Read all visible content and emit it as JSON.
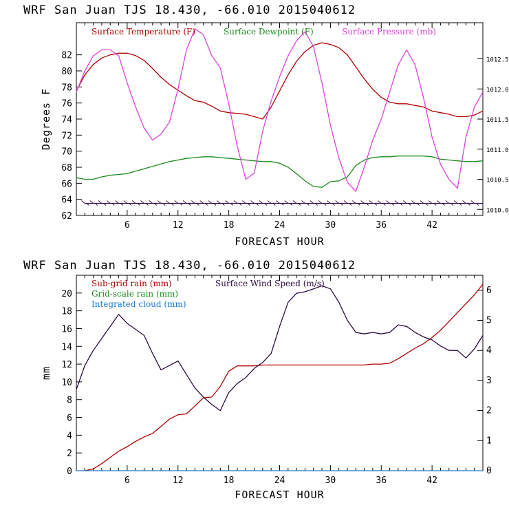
{
  "chart_data": [
    {
      "type": "line",
      "title": "WRF   San Juan TJS  18.430, -66.010  2015040612",
      "xlabel": "FORECAST HOUR",
      "ylabel": "Degrees F",
      "xlim": [
        0,
        48
      ],
      "ylim": [
        62,
        86
      ],
      "y2lim": [
        1009.9,
        1013.1
      ],
      "x_ticks": [
        6,
        12,
        18,
        24,
        30,
        36,
        42
      ],
      "y_ticks": [
        62,
        64,
        66,
        68,
        70,
        72,
        74,
        76,
        78,
        80,
        82
      ],
      "y2_ticks": [
        "1010.0",
        "1010.5",
        "1011.0",
        "1011.5",
        "1012.0",
        "1012.5"
      ],
      "y2_tick_values": [
        1010.0,
        1010.5,
        1011.0,
        1011.5,
        1012.0,
        1012.5
      ],
      "legend": [
        "Surface Temperature (F)",
        "Surface Dewpoint (F)",
        "Surface Pressure (mb)"
      ],
      "legend_position": "top",
      "colors": {
        "temp": "#b00000",
        "dew": "#1e8a1e",
        "pres": "#e040e0",
        "wind": "#3a1050"
      },
      "series": [
        {
          "name": "Surface Temperature (F)",
          "color": "#b00000",
          "axis": "left",
          "x": [
            0,
            1,
            2,
            3,
            4,
            5,
            6,
            7,
            8,
            9,
            10,
            11,
            12,
            13,
            14,
            15,
            16,
            17,
            18,
            19,
            20,
            21,
            22,
            23,
            24,
            25,
            26,
            27,
            28,
            29,
            30,
            31,
            32,
            33,
            34,
            35,
            36,
            37,
            38,
            39,
            40,
            41,
            42,
            43,
            44,
            45,
            46,
            47,
            48
          ],
          "y": [
            77.5,
            79.5,
            80.8,
            81.6,
            82.0,
            82.2,
            82.2,
            81.9,
            81.3,
            80.3,
            79.2,
            78.3,
            77.6,
            76.9,
            76.3,
            76.1,
            75.6,
            75.0,
            74.8,
            74.7,
            74.6,
            74.3,
            74.0,
            75.5,
            77.5,
            79.5,
            81.2,
            82.4,
            83.2,
            83.5,
            83.3,
            82.9,
            82.0,
            80.5,
            79.0,
            77.7,
            76.7,
            76.1,
            75.9,
            75.9,
            75.7,
            75.5,
            75.0,
            74.8,
            74.6,
            74.3,
            74.3,
            74.5,
            75.0
          ]
        },
        {
          "name": "Surface Dewpoint (F)",
          "color": "#1e8a1e",
          "axis": "left",
          "x": [
            0,
            1,
            2,
            3,
            4,
            5,
            6,
            7,
            8,
            9,
            10,
            11,
            12,
            13,
            14,
            15,
            16,
            17,
            18,
            19,
            20,
            21,
            22,
            23,
            24,
            25,
            26,
            27,
            28,
            29,
            30,
            31,
            32,
            33,
            34,
            35,
            36,
            37,
            38,
            39,
            40,
            41,
            42,
            43,
            44,
            45,
            46,
            47,
            48
          ],
          "y": [
            66.7,
            66.5,
            66.5,
            66.8,
            67.0,
            67.1,
            67.2,
            67.5,
            67.8,
            68.1,
            68.4,
            68.7,
            68.9,
            69.1,
            69.2,
            69.3,
            69.3,
            69.2,
            69.1,
            69.0,
            68.9,
            68.8,
            68.7,
            68.7,
            68.5,
            68.0,
            67.2,
            66.3,
            65.6,
            65.5,
            66.2,
            66.3,
            66.8,
            68.2,
            68.9,
            69.2,
            69.3,
            69.3,
            69.4,
            69.4,
            69.4,
            69.4,
            69.3,
            69.0,
            68.9,
            68.8,
            68.7,
            68.7,
            68.8
          ]
        },
        {
          "name": "Surface Pressure (mb)",
          "color": "#e040e0",
          "axis": "right",
          "x": [
            0,
            1,
            2,
            3,
            4,
            5,
            6,
            7,
            8,
            9,
            10,
            11,
            12,
            13,
            14,
            15,
            16,
            17,
            18,
            19,
            20,
            21,
            22,
            23,
            24,
            25,
            26,
            27,
            28,
            29,
            30,
            31,
            32,
            33,
            34,
            35,
            36,
            37,
            38,
            39,
            40,
            41,
            42,
            43,
            44,
            45,
            46,
            47,
            48
          ],
          "y": [
            1011.95,
            1012.3,
            1012.55,
            1012.65,
            1012.65,
            1012.55,
            1012.1,
            1011.7,
            1011.35,
            1011.15,
            1011.25,
            1011.45,
            1012.0,
            1012.65,
            1013.0,
            1012.9,
            1012.55,
            1012.35,
            1011.75,
            1011.05,
            1010.5,
            1010.6,
            1011.3,
            1011.8,
            1012.2,
            1012.55,
            1012.8,
            1012.95,
            1012.7,
            1012.1,
            1011.4,
            1010.85,
            1010.45,
            1010.3,
            1010.7,
            1011.15,
            1011.5,
            1011.95,
            1012.4,
            1012.65,
            1012.4,
            1011.85,
            1011.2,
            1010.75,
            1010.5,
            1010.35,
            1011.2,
            1011.7,
            1011.95
          ]
        },
        {
          "name": "Surface wind barbs",
          "color": "#3a1050",
          "axis": "left",
          "x": [
            1,
            2,
            3,
            4,
            5,
            6,
            7,
            8,
            9,
            10,
            11,
            12,
            13,
            14,
            15,
            16,
            17,
            18,
            19,
            20,
            21,
            22,
            23,
            24,
            25,
            26,
            27,
            28,
            29,
            30,
            31,
            32,
            33,
            34,
            35,
            36,
            37,
            38,
            39,
            40,
            41,
            42,
            43,
            44,
            45,
            46,
            47
          ],
          "y": [
            63.5,
            63.5,
            63.5,
            63.5,
            63.5,
            63.5,
            63.5,
            63.5,
            63.5,
            63.5,
            63.5,
            63.5,
            63.5,
            63.5,
            63.5,
            63.5,
            63.5,
            63.5,
            63.5,
            63.5,
            63.5,
            63.5,
            63.5,
            63.5,
            63.5,
            63.5,
            63.5,
            63.5,
            63.5,
            63.5,
            63.5,
            63.5,
            63.5,
            63.5,
            63.5,
            63.5,
            63.5,
            63.5,
            63.5,
            63.5,
            63.5,
            63.5,
            63.5,
            63.5,
            63.5,
            63.5,
            63.5
          ]
        }
      ]
    },
    {
      "type": "line",
      "title": "WRF   San Juan TJS  18.430, -66.010  2015040612",
      "xlabel": "FORECAST HOUR",
      "ylabel": "mm",
      "xlim": [
        0,
        48
      ],
      "ylim": [
        0,
        22
      ],
      "y2lim": [
        0,
        6.5
      ],
      "x_ticks": [
        6,
        12,
        18,
        24,
        30,
        36,
        42
      ],
      "y_ticks": [
        0,
        2,
        4,
        6,
        8,
        10,
        12,
        14,
        16,
        18,
        20
      ],
      "y2_ticks": [
        "0",
        "1",
        "2",
        "3",
        "4",
        "5",
        "6"
      ],
      "y2_tick_values": [
        0,
        1,
        2,
        3,
        4,
        5,
        6
      ],
      "legend": [
        "Sub-grid rain (mm)",
        "Grid-scale rain (mm)",
        "Integrated cloud (mm)",
        "Surface Wind Speed (m/s)"
      ],
      "legend_colors": [
        "#b00000",
        "#1e8a1e",
        "#1e7ac8",
        "#2a0a40"
      ],
      "legend_position": "top-left",
      "series": [
        {
          "name": "Sub-grid rain (mm)",
          "color": "#b00000",
          "axis": "left",
          "x": [
            1,
            2,
            3,
            4,
            5,
            6,
            7,
            8,
            9,
            10,
            11,
            12,
            13,
            14,
            15,
            16,
            17,
            18,
            19,
            20,
            21,
            22,
            23,
            24,
            25,
            26,
            27,
            28,
            29,
            30,
            31,
            32,
            33,
            34,
            35,
            36,
            37,
            38,
            39,
            40,
            41,
            42,
            43,
            44,
            45,
            46,
            47,
            48
          ],
          "y": [
            0.0,
            0.2,
            0.8,
            1.5,
            2.2,
            2.7,
            3.3,
            3.8,
            4.2,
            5.0,
            5.8,
            6.3,
            6.4,
            7.3,
            8.2,
            8.3,
            9.5,
            11.2,
            11.8,
            11.8,
            11.8,
            11.9,
            11.9,
            11.9,
            11.9,
            11.9,
            11.9,
            11.9,
            11.9,
            11.9,
            11.9,
            11.9,
            11.9,
            11.9,
            12.0,
            12.0,
            12.1,
            12.6,
            13.2,
            13.8,
            14.3,
            15.0,
            15.8,
            16.8,
            17.8,
            18.8,
            19.8,
            21.0
          ]
        },
        {
          "name": "Surface Wind Speed (m/s)",
          "color": "#2a0a40",
          "axis": "right",
          "x": [
            0,
            1,
            2,
            3,
            4,
            5,
            6,
            7,
            8,
            9,
            10,
            11,
            12,
            13,
            14,
            15,
            16,
            17,
            18,
            19,
            20,
            21,
            22,
            23,
            24,
            25,
            26,
            27,
            28,
            29,
            30,
            31,
            32,
            33,
            34,
            35,
            36,
            37,
            38,
            39,
            40,
            41,
            42,
            43,
            44,
            45,
            46,
            47,
            48
          ],
          "y": [
            2.7,
            3.5,
            4.0,
            4.4,
            4.8,
            5.2,
            4.9,
            4.7,
            4.5,
            3.9,
            3.35,
            3.5,
            3.65,
            3.2,
            2.75,
            2.45,
            2.2,
            2.0,
            2.6,
            2.9,
            3.1,
            3.4,
            3.6,
            3.9,
            4.8,
            5.6,
            5.9,
            5.95,
            6.05,
            6.15,
            6.05,
            5.6,
            5.0,
            4.6,
            4.55,
            4.6,
            4.55,
            4.6,
            4.85,
            4.8,
            4.6,
            4.45,
            4.35,
            4.15,
            4.0,
            4.0,
            3.75,
            4.05,
            4.5
          ]
        },
        {
          "name": "Grid-scale rain (mm)",
          "color": "#1e8a1e",
          "axis": "left",
          "x": [],
          "y": []
        },
        {
          "name": "Integrated cloud (mm)",
          "color": "#1e7ac8",
          "axis": "left",
          "x": [
            0,
            48
          ],
          "y": [
            0,
            0
          ]
        }
      ]
    }
  ]
}
